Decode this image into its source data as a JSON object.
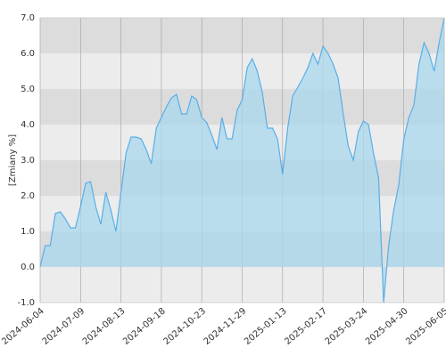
{
  "chart_data": {
    "type": "area",
    "y_label": "[Zmiany %]",
    "color": "#5aaee8",
    "fill": "#a8d8ec",
    "categories": [
      "2024-06-04",
      null,
      null,
      null,
      null,
      null,
      null,
      null,
      "2024-07-09",
      null,
      null,
      null,
      null,
      null,
      null,
      null,
      "2024-08-13",
      null,
      null,
      null,
      null,
      null,
      null,
      null,
      "2024-09-18",
      null,
      null,
      null,
      null,
      null,
      null,
      null,
      "2024-10-23",
      null,
      null,
      null,
      null,
      null,
      null,
      null,
      "2024-11-29",
      null,
      null,
      null,
      null,
      null,
      null,
      null,
      "2025-01-13",
      null,
      null,
      null,
      null,
      null,
      null,
      null,
      "2025-02-17",
      null,
      null,
      null,
      null,
      null,
      null,
      null,
      "2025-03-24",
      null,
      null,
      null,
      null,
      null,
      null,
      null,
      "2025-04-30",
      null,
      null,
      null,
      null,
      null,
      null,
      null,
      "2025-06-05"
    ],
    "values": [
      0.0,
      0.6,
      0.6,
      1.5,
      1.55,
      1.35,
      1.1,
      1.1,
      1.7,
      2.35,
      2.4,
      1.7,
      1.2,
      2.1,
      1.6,
      1.0,
      2.1,
      3.2,
      3.65,
      3.65,
      3.6,
      3.3,
      2.9,
      3.9,
      4.2,
      4.5,
      4.75,
      4.85,
      4.3,
      4.3,
      4.8,
      4.7,
      4.2,
      4.05,
      3.7,
      3.3,
      4.2,
      3.6,
      3.6,
      4.4,
      4.7,
      5.6,
      5.85,
      5.5,
      4.9,
      3.9,
      3.9,
      3.6,
      2.6,
      3.9,
      4.8,
      5.05,
      5.3,
      5.6,
      6.0,
      5.7,
      6.2,
      6.0,
      5.7,
      5.3,
      4.3,
      3.4,
      3.0,
      3.8,
      4.1,
      4.0,
      3.2,
      2.5,
      -1.0,
      0.6,
      1.6,
      2.3,
      3.6,
      4.2,
      4.55,
      5.7,
      6.3,
      6.0,
      5.5,
      6.3,
      7.0
    ],
    "ylim": [
      -1,
      7
    ],
    "yticks": [
      {
        "value": -1,
        "label": "-1.0"
      },
      {
        "value": 0,
        "label": "0.0"
      },
      {
        "value": 1,
        "label": "1.0"
      },
      {
        "value": 2,
        "label": "2.0"
      },
      {
        "value": 3,
        "label": "3.0"
      },
      {
        "value": 4,
        "label": "4.0"
      },
      {
        "value": 5,
        "label": "5.0"
      },
      {
        "value": 6,
        "label": "6.0"
      },
      {
        "value": 7,
        "label": "7.0"
      }
    ],
    "grid": true
  }
}
